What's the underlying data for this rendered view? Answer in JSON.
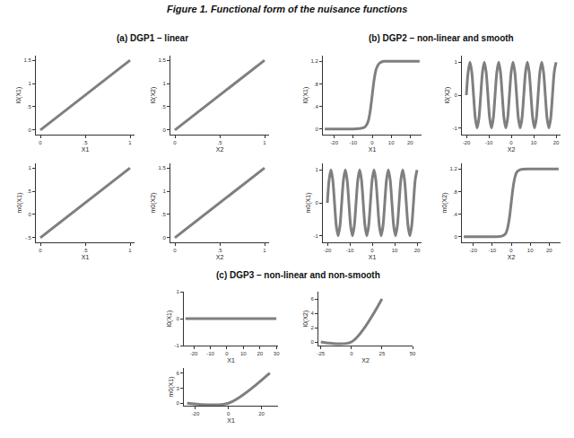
{
  "chart_data": {
    "type": "line",
    "title": "Figure 1. Functional form of the nuisance functions",
    "groups": [
      {
        "title": "(a) DGP1 – linear",
        "charts": [
          {
            "type": "line",
            "xlabel": "X1",
            "ylabel": "l0(X1)",
            "color": "#7f7f7f",
            "line_style": "solid",
            "grid": false,
            "x": [
              0,
              1
            ],
            "values": [
              0,
              1.5
            ],
            "xlim": [
              -0.05,
              1.05
            ],
            "ylim": [
              -0.1,
              1.6
            ],
            "xticks": [
              0,
              {
                "value": 0.5,
                "label": ".5"
              },
              1
            ],
            "yticks": [
              0,
              {
                "value": 0.5,
                "label": ".5"
              },
              1,
              1.5
            ]
          },
          {
            "type": "line",
            "xlabel": "X2",
            "ylabel": "l0(X2)",
            "color": "#7f7f7f",
            "line_style": "solid",
            "grid": false,
            "x": [
              0,
              1
            ],
            "values": [
              0,
              1.5
            ],
            "xlim": [
              -0.05,
              1.05
            ],
            "ylim": [
              -0.1,
              1.6
            ],
            "xticks": [
              0,
              {
                "value": 0.5,
                "label": ".5"
              },
              1
            ],
            "yticks": [
              0,
              {
                "value": 0.5,
                "label": ".5"
              },
              1,
              1.5
            ]
          },
          {
            "type": "line",
            "xlabel": "X1",
            "ylabel": "m0(X1)",
            "color": "#7f7f7f",
            "line_style": "solid",
            "grid": false,
            "x": [
              0,
              1
            ],
            "values": [
              -0.5,
              1
            ],
            "xlim": [
              -0.05,
              1.05
            ],
            "ylim": [
              -0.6,
              1.1
            ],
            "xticks": [
              0,
              {
                "value": 0.5,
                "label": ".5"
              },
              1
            ],
            "yticks": [
              {
                "value": -0.5,
                "label": "-.5"
              },
              0,
              {
                "value": 0.5,
                "label": ".5"
              },
              1
            ]
          },
          {
            "type": "line",
            "xlabel": "X2",
            "ylabel": "m0(X2)",
            "color": "#7f7f7f",
            "line_style": "solid",
            "grid": false,
            "x": [
              0,
              1
            ],
            "values": [
              0,
              1.5
            ],
            "xlim": [
              -0.05,
              1.05
            ],
            "ylim": [
              -0.1,
              1.6
            ],
            "xticks": [
              0,
              {
                "value": 0.5,
                "label": ".5"
              },
              1
            ],
            "yticks": [
              0,
              {
                "value": 0.5,
                "label": ".5"
              },
              1,
              1.5
            ]
          }
        ]
      },
      {
        "title": "(b) DGP2 – non-linear and smooth",
        "charts": [
          {
            "type": "line",
            "xlabel": "X1",
            "ylabel": "l0(X1)",
            "color": "#7f7f7f",
            "line_style": "solid",
            "grid": false,
            "x": [
              -25,
              -10,
              -6,
              -4,
              -3,
              -2,
              -1,
              0,
              1,
              2,
              3,
              4,
              6,
              10,
              25
            ],
            "values": [
              0,
              0,
              0.01,
              0.03,
              0.07,
              0.15,
              0.33,
              0.6,
              0.87,
              1.05,
              1.13,
              1.17,
              1.2,
              1.2,
              1.2
            ],
            "xlim": [
              -26,
              26
            ],
            "ylim": [
              -0.1,
              1.3
            ],
            "xticks": [
              -20,
              -10,
              0,
              10,
              20
            ],
            "yticks": [
              0,
              {
                "value": 0.4,
                "label": ".4"
              },
              {
                "value": 0.8,
                "label": ".8"
              },
              1.2
            ]
          },
          {
            "type": "line",
            "xlabel": "X2",
            "ylabel": "l0(X2)",
            "color": "#7f7f7f",
            "line_style": "solid",
            "grid": false,
            "x": [
              -20,
              -19.2,
              -18.4,
              -17.6,
              -16.8,
              -16,
              -15.2,
              -14.4,
              -13.6,
              -12.8,
              -12,
              -11.2,
              -10.4,
              -9.6,
              -8.8,
              -8,
              -7.2,
              -6.4,
              -5.6,
              -4.8,
              -4,
              -3.2,
              -2.4,
              -1.6,
              -0.8,
              0,
              0.8,
              1.6,
              2.4,
              3.2,
              4,
              4.8,
              5.6,
              6.4,
              7.2,
              8,
              8.8,
              9.6,
              10.4,
              11.2,
              12,
              12.8,
              13.6,
              14.4,
              15.2,
              16,
              16.8,
              17.6,
              18.4,
              19.2,
              20
            ],
            "values": [
              0,
              0.71,
              1,
              0.71,
              0,
              -0.71,
              -1,
              -0.71,
              0,
              0.71,
              1,
              0.71,
              0,
              -0.71,
              -1,
              -0.71,
              0,
              0.71,
              1,
              0.71,
              0,
              -0.71,
              -1,
              -0.71,
              0,
              0.71,
              1,
              0.71,
              0,
              -0.71,
              -1,
              -0.71,
              0,
              0.71,
              1,
              0.71,
              0,
              -0.71,
              -1,
              -0.71,
              0,
              0.71,
              1,
              0.71,
              0,
              -0.71,
              -1,
              -0.71,
              0,
              0.71,
              1
            ],
            "xlim": [
              -22,
              22
            ],
            "ylim": [
              -1.2,
              1.2
            ],
            "xticks": [
              -20,
              -10,
              0,
              10,
              20
            ],
            "yticks": [
              -1,
              0,
              1
            ]
          },
          {
            "type": "line",
            "xlabel": "X1",
            "ylabel": "m0(X1)",
            "color": "#7f7f7f",
            "line_style": "solid",
            "grid": false,
            "x": [
              -20,
              -19.2,
              -18.4,
              -17.6,
              -16.8,
              -16,
              -15.2,
              -14.4,
              -13.6,
              -12.8,
              -12,
              -11.2,
              -10.4,
              -9.6,
              -8.8,
              -8,
              -7.2,
              -6.4,
              -5.6,
              -4.8,
              -4,
              -3.2,
              -2.4,
              -1.6,
              -0.8,
              0,
              0.8,
              1.6,
              2.4,
              3.2,
              4,
              4.8,
              5.6,
              6.4,
              7.2,
              8,
              8.8,
              9.6,
              10.4,
              11.2,
              12,
              12.8,
              13.6,
              14.4,
              15.2,
              16,
              16.8,
              17.6,
              18.4,
              19.2,
              20
            ],
            "values": [
              0,
              0.71,
              1,
              0.71,
              0,
              -0.71,
              -1,
              -0.71,
              0,
              0.71,
              1,
              0.71,
              0,
              -0.71,
              -1,
              -0.71,
              0,
              0.71,
              1,
              0.71,
              0,
              -0.71,
              -1,
              -0.71,
              0,
              0.71,
              1,
              0.71,
              0,
              -0.71,
              -1,
              -0.71,
              0,
              0.71,
              1,
              0.71,
              0,
              -0.71,
              -1,
              -0.71,
              0,
              0.71,
              1,
              0.71,
              0,
              -0.71,
              -1,
              -0.71,
              0,
              0.71,
              1
            ],
            "xlim": [
              -22,
              22
            ],
            "ylim": [
              -1.2,
              1.2
            ],
            "xticks": [
              -20,
              -10,
              0,
              10,
              20
            ],
            "yticks": [
              -1,
              0,
              1
            ]
          },
          {
            "type": "line",
            "xlabel": "X2",
            "ylabel": "m0(X2)",
            "color": "#7f7f7f",
            "line_style": "solid",
            "grid": false,
            "x": [
              -25,
              -10,
              -5,
              -3,
              -2,
              -1,
              0,
              1,
              2,
              3,
              5,
              10,
              25
            ],
            "values": [
              0,
              0,
              0.01,
              0.05,
              0.14,
              0.32,
              0.6,
              0.88,
              1.06,
              1.15,
              1.19,
              1.2,
              1.2
            ],
            "xlim": [
              -26,
              26
            ],
            "ylim": [
              -0.1,
              1.3
            ],
            "xticks": [
              -20,
              -10,
              0,
              10,
              20
            ],
            "yticks": [
              0,
              {
                "value": 0.4,
                "label": ".4"
              },
              {
                "value": 0.8,
                "label": ".8"
              },
              1.2
            ]
          }
        ]
      },
      {
        "title": "(c) DGP3 – non-linear and non-smooth",
        "charts": [
          {
            "type": "line",
            "xlabel": "X1",
            "ylabel": "l0(X1)",
            "color": "#7f7f7f",
            "line_style": "solid",
            "grid": false,
            "x": [
              -25,
              30
            ],
            "values": [
              0,
              0
            ],
            "xlim": [
              -26,
              31
            ],
            "ylim": [
              -1,
              1
            ],
            "xticks": [
              -20,
              -10,
              0,
              10,
              20,
              30
            ],
            "yticks": [
              -1,
              0,
              1
            ]
          },
          {
            "type": "line",
            "xlabel": "X2",
            "ylabel": "l0(X2)",
            "color": "#7f7f7f",
            "line_style": "solid",
            "grid": false,
            "x": [
              -25,
              0,
              25
            ],
            "values": [
              0,
              0,
              6
            ],
            "xlim": [
              -27,
              50
            ],
            "ylim": [
              -0.5,
              7
            ],
            "xticks": [
              -25,
              0,
              25,
              50
            ],
            "yticks": [
              0,
              2,
              4,
              6
            ]
          },
          {
            "type": "line",
            "xlabel": "X1",
            "ylabel": "m0(X1)",
            "color": "#7f7f7f",
            "line_style": "solid",
            "grid": false,
            "x": [
              -25,
              0,
              25
            ],
            "values": [
              0,
              0,
              6
            ],
            "xlim": [
              -27,
              30
            ],
            "ylim": [
              -0.5,
              7
            ],
            "xticks": [
              -20,
              0,
              20
            ],
            "yticks": [
              0,
              3,
              6
            ]
          }
        ]
      }
    ]
  }
}
